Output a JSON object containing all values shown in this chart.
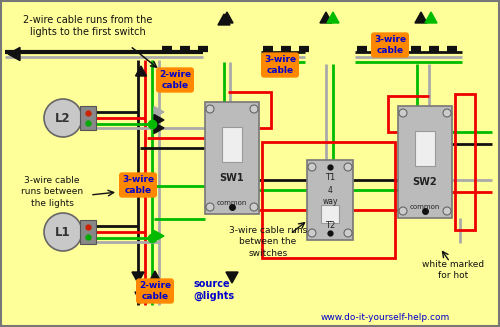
{
  "bg_color": "#FFFF99",
  "wire_black": "#111111",
  "wire_red": "#EE0000",
  "wire_green": "#00BB00",
  "wire_gray": "#AAAAAA",
  "wire_white": "#FFFFFF",
  "orange": "#FF8800",
  "blue": "#0000CC",
  "switch_gray": "#AAAAAA",
  "switch_dark": "#888888",
  "switch_inner": "#DDDDDD",
  "text_dark": "#222222",
  "fig_w": 5.0,
  "fig_h": 3.27,
  "dpi": 100,
  "title": "2-wire cable runs from the\nlights to the first switch",
  "lbl_2wire_top": "2-wire\ncable",
  "lbl_3wire_mid": "3-wire\ncable",
  "lbl_3wire_center": "3-wire\ncable",
  "lbl_3wire_right": "3-wire\ncable",
  "lbl_2wire_bot": "2-wire\ncable",
  "lbl_between_switches": "3-wire cable runs\nbetween the\nswitches",
  "lbl_between_lights": "3-wire cable\nruns between\nthe lights",
  "lbl_source": "source\n@lights",
  "lbl_white_marked": "white marked\nfor hot",
  "lbl_url": "www.do-it-yourself-help.com",
  "sw1": "SW1",
  "sw2": "SW2",
  "common": "common",
  "t1": "T1",
  "t2": "T2",
  "way4": "4\nway",
  "l1": "L1",
  "l2": "L2"
}
